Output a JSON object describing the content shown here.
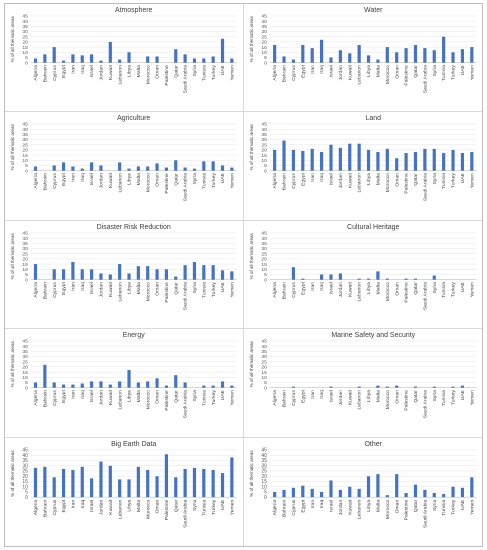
{
  "chart_data": [
    {
      "type": "bar",
      "title": "Atmosphere",
      "ylabel": "% of all thematic areas",
      "ylim": [
        0,
        45
      ],
      "yticks": [
        0,
        5,
        10,
        15,
        20,
        25,
        30,
        35,
        40,
        45
      ],
      "categories": [
        "Algeria",
        "Bahrain",
        "Cyprus",
        "Egypt",
        "Iran",
        "Iraq",
        "Israel",
        "Jordan",
        "Kuwait",
        "Lebanon",
        "Libya",
        "Malta",
        "Morocco",
        "Oman",
        "Palestine",
        "Qatar",
        "Saudi Arabia",
        "Syria",
        "Tunisia",
        "Turkey",
        "UAE",
        "Yemen"
      ],
      "values": [
        4,
        8,
        15,
        2,
        8,
        7,
        8,
        2,
        20,
        3,
        10,
        0,
        6,
        6,
        0,
        13,
        8,
        4,
        4,
        6,
        23,
        4
      ],
      "color": "#4472c4"
    },
    {
      "type": "bar",
      "title": "Water",
      "ylabel": "% of all thematic areas",
      "ylim": [
        0,
        45
      ],
      "yticks": [
        0,
        5,
        10,
        15,
        20,
        25,
        30,
        35,
        40,
        45
      ],
      "categories": [
        "Algeria",
        "Bahrain",
        "Cyprus",
        "Egypt",
        "Iran",
        "Iraq",
        "Israel",
        "Jordan",
        "Kuwait",
        "Lebanon",
        "Libya",
        "Malta",
        "Morocco",
        "Oman",
        "Palestine",
        "Qatar",
        "Saudi Arabia",
        "Syria",
        "Tunisia",
        "Turkey",
        "UAE",
        "Yemen"
      ],
      "values": [
        17,
        6,
        3,
        17,
        14,
        22,
        5,
        12,
        9,
        17,
        7,
        3,
        15,
        10,
        14,
        17,
        14,
        12,
        25,
        10,
        13,
        15
      ],
      "color": "#4472c4"
    },
    {
      "type": "bar",
      "title": "Agriculture",
      "ylabel": "% of all thematic areas",
      "ylim": [
        0,
        45
      ],
      "yticks": [
        0,
        5,
        10,
        15,
        20,
        25,
        30,
        35,
        40,
        45
      ],
      "categories": [
        "Algeria",
        "Bahrain",
        "Cyprus",
        "Egypt",
        "Iran",
        "Iraq",
        "Israel",
        "Jordan",
        "Kuwait",
        "Lebanon",
        "Libya",
        "Malta",
        "Morocco",
        "Oman",
        "Palestine",
        "Qatar",
        "Saudi Arabia",
        "Syria",
        "Tunisia",
        "Turkey",
        "UAE",
        "Yemen"
      ],
      "values": [
        4,
        0,
        5,
        8,
        4,
        2,
        8,
        5,
        0,
        8,
        2,
        4,
        4,
        7,
        3,
        10,
        3,
        2,
        9,
        9,
        5,
        3
      ],
      "color": "#4472c4"
    },
    {
      "type": "bar",
      "title": "Land",
      "ylabel": "% of all thematic areas",
      "ylim": [
        0,
        45
      ],
      "yticks": [
        0,
        5,
        10,
        15,
        20,
        25,
        30,
        35,
        40,
        45
      ],
      "categories": [
        "Algeria",
        "Bahrain",
        "Cyprus",
        "Egypt",
        "Iran",
        "Iraq",
        "Israel",
        "Jordan",
        "Kuwait",
        "Lebanon",
        "Libya",
        "Malta",
        "Morocco",
        "Oman",
        "Palestine",
        "Qatar",
        "Saudi Arabia",
        "Syria",
        "Tunisia",
        "Turkey",
        "UAE",
        "Yemen"
      ],
      "values": [
        20,
        29,
        20,
        19,
        21,
        18,
        25,
        22,
        26,
        26,
        20,
        18,
        21,
        12,
        17,
        18,
        21,
        21,
        17,
        20,
        17,
        18
      ],
      "color": "#4472c4"
    },
    {
      "type": "bar",
      "title": "Disaster Risk Reduction",
      "ylabel": "% of all thematic areas",
      "ylim": [
        0,
        45
      ],
      "yticks": [
        0,
        5,
        10,
        15,
        20,
        25,
        30,
        35,
        40,
        45
      ],
      "categories": [
        "Algeria",
        "Bahrain",
        "Cyprus",
        "Egypt",
        "Iran",
        "Iraq",
        "Israel",
        "Jordan",
        "Kuwait",
        "Lebanon",
        "Libya",
        "Malta",
        "Morocco",
        "Oman",
        "Palestine",
        "Qatar",
        "Saudi Arabia",
        "Syria",
        "Tunisia",
        "Turkey",
        "UAE",
        "Yemen"
      ],
      "values": [
        15,
        0,
        10,
        10,
        17,
        10,
        10,
        6,
        5,
        15,
        6,
        13,
        13,
        10,
        10,
        3,
        14,
        17,
        14,
        14,
        9,
        8
      ],
      "color": "#4472c4"
    },
    {
      "type": "bar",
      "title": "Cultural Heritage",
      "ylabel": "% of all thematic areas",
      "ylim": [
        0,
        45
      ],
      "yticks": [
        0,
        5,
        10,
        15,
        20,
        25,
        30,
        35,
        40,
        45
      ],
      "categories": [
        "Algeria",
        "Bahrain",
        "Cyprus",
        "Egypt",
        "Iran",
        "Iraq",
        "Israel",
        "Jordan",
        "Kuwait",
        "Lebanon",
        "Libya",
        "Malta",
        "Morocco",
        "Oman",
        "Palestine",
        "Qatar",
        "Saudi Arabia",
        "Syria",
        "Tunisia",
        "Turkey",
        "UAE",
        "Yemen"
      ],
      "values": [
        0,
        0,
        12,
        1,
        0,
        5,
        5,
        6,
        0,
        1,
        1,
        8,
        1,
        0,
        1,
        1,
        0,
        4,
        0,
        0,
        0,
        0
      ],
      "color": "#4472c4"
    },
    {
      "type": "bar",
      "title": "Energy",
      "ylabel": "% of all thematic areas",
      "ylim": [
        0,
        45
      ],
      "yticks": [
        0,
        5,
        10,
        15,
        20,
        25,
        30,
        35,
        40,
        45
      ],
      "categories": [
        "Algeria",
        "Bahrain",
        "Cyprus",
        "Egypt",
        "Iran",
        "Iraq",
        "Israel",
        "Jordan",
        "Kuwait",
        "Lebanon",
        "Libya",
        "Malta",
        "Morocco",
        "Oman",
        "Palestine",
        "Qatar",
        "Saudi Arabia",
        "Syria",
        "Tunisia",
        "Turkey",
        "UAE",
        "Yemen"
      ],
      "values": [
        5,
        22,
        5,
        3,
        3,
        4,
        6,
        6,
        3,
        6,
        17,
        5,
        6,
        9,
        2,
        12,
        5,
        0,
        2,
        2,
        6,
        2
      ],
      "color": "#4472c4"
    },
    {
      "type": "bar",
      "title": "Marine Safety and Security",
      "ylabel": "% of all thematic areas",
      "ylim": [
        0,
        45
      ],
      "yticks": [
        0,
        5,
        10,
        15,
        20,
        25,
        30,
        35,
        40,
        45
      ],
      "categories": [
        "Algeria",
        "Bahrain",
        "Cyprus",
        "Egypt",
        "Iran",
        "Iraq",
        "Israel",
        "Jordan",
        "Kuwait",
        "Lebanon",
        "Libya",
        "Malta",
        "Morocco",
        "Oman",
        "Palestine",
        "Qatar",
        "Saudi Arabia",
        "Syria",
        "Tunisia",
        "Turkey",
        "UAE",
        "Yemen"
      ],
      "values": [
        0,
        0,
        1,
        0,
        0,
        0,
        1,
        0,
        0,
        1,
        0,
        2,
        1,
        2,
        0,
        1,
        0,
        1,
        0,
        1,
        2,
        0
      ],
      "color": "#4472c4"
    },
    {
      "type": "bar",
      "title": "Big Earth Data",
      "ylabel": "% of all thematic areas",
      "ylim": [
        0,
        45
      ],
      "yticks": [
        0,
        5,
        10,
        15,
        20,
        25,
        30,
        35,
        40,
        45
      ],
      "categories": [
        "Algeria",
        "Bahrain",
        "Cyprus",
        "Egypt",
        "Iran",
        "Iraq",
        "Israel",
        "Jordan",
        "Kuwait",
        "Lebanon",
        "Libya",
        "Malta",
        "Morocco",
        "Oman",
        "Palestine",
        "Qatar",
        "Saudi Arabia",
        "Syria",
        "Tunisia",
        "Turkey",
        "UAE",
        "Yemen"
      ],
      "values": [
        28,
        29,
        19,
        27,
        26,
        29,
        18,
        34,
        30,
        17,
        17,
        29,
        26,
        20,
        41,
        19,
        27,
        28,
        27,
        26,
        23,
        38
      ],
      "color": "#4472c4"
    },
    {
      "type": "bar",
      "title": "Other",
      "ylabel": "% of all thematic areas",
      "ylim": [
        0,
        45
      ],
      "yticks": [
        0,
        5,
        10,
        15,
        20,
        25,
        30,
        35,
        40,
        45
      ],
      "categories": [
        "Algeria",
        "Bahrain",
        "Cyprus",
        "Egypt",
        "Iran",
        "Iraq",
        "Israel",
        "Jordan",
        "Kuwait",
        "Lebanon",
        "Libya",
        "Malta",
        "Morocco",
        "Oman",
        "Palestine",
        "Qatar",
        "Saudi Arabia",
        "Syria",
        "Tunisia",
        "Turkey",
        "UAE",
        "Yemen"
      ],
      "values": [
        5,
        7,
        9,
        11,
        8,
        5,
        16,
        7,
        10,
        8,
        20,
        22,
        2,
        22,
        4,
        12,
        7,
        4,
        3,
        10,
        9,
        19
      ],
      "color": "#4472c4"
    }
  ]
}
